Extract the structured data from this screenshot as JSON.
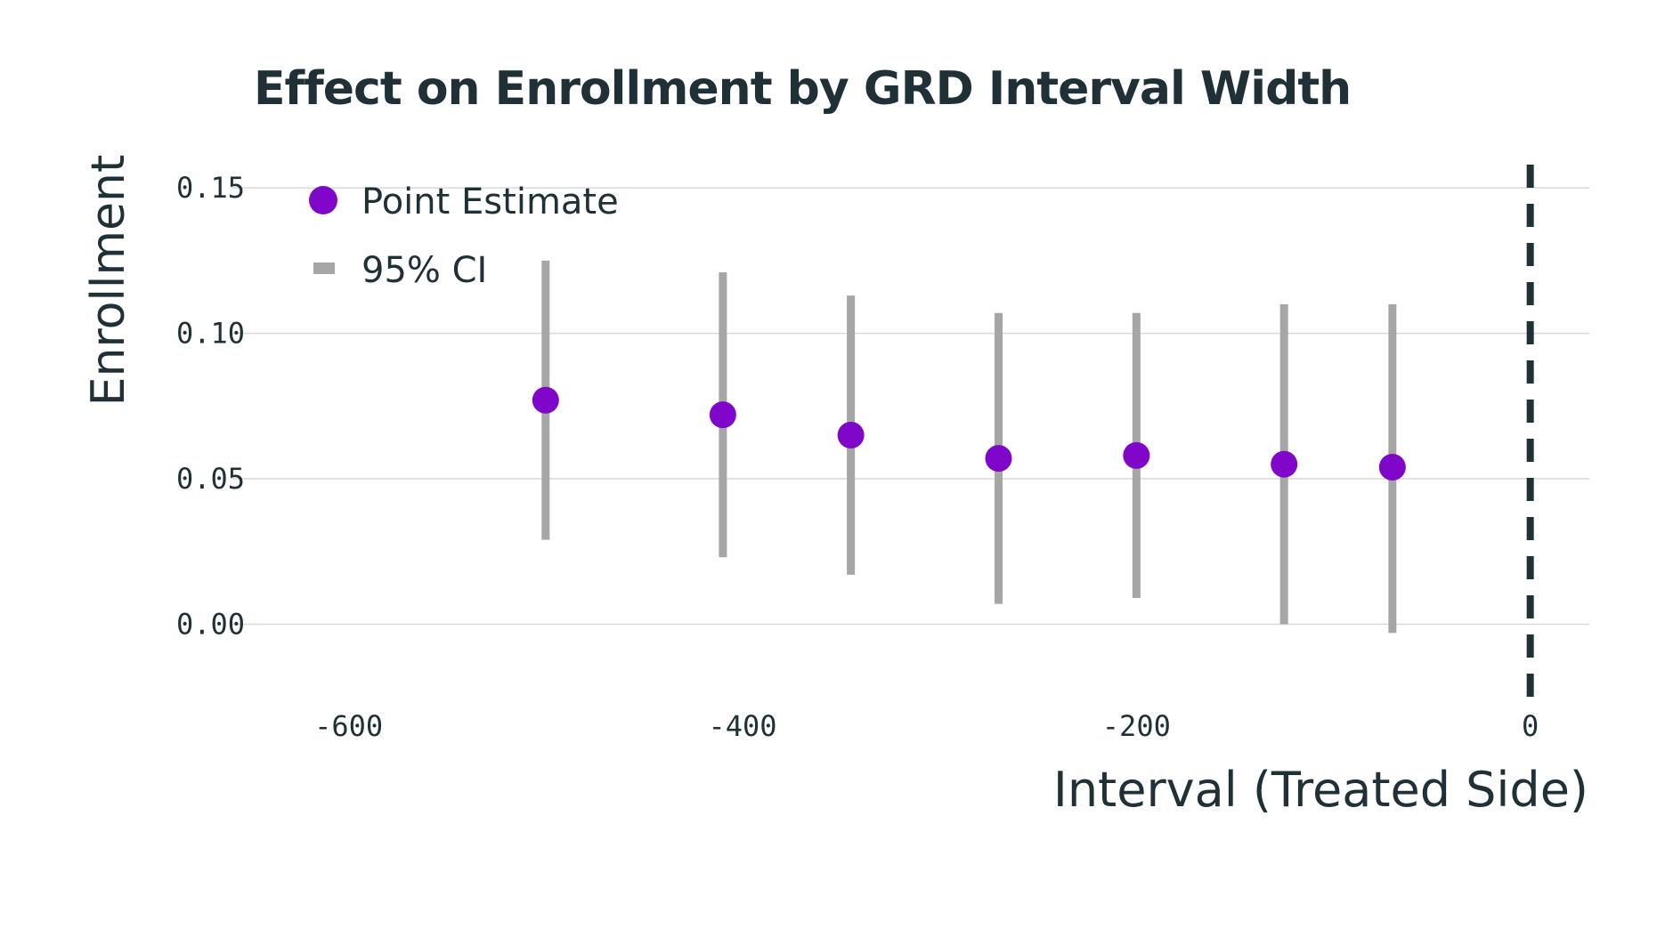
{
  "chart_data": {
    "type": "scatter",
    "title": "Effect on Enrollment by GRD Interval Width",
    "xlabel": "Interval (Treated Side)",
    "ylabel": "Enrollment",
    "xlim": [
      -655,
      30
    ],
    "ylim": [
      -0.028,
      0.158
    ],
    "x_ticks": [
      -600,
      -400,
      -200,
      0
    ],
    "x_tick_labels": [
      "-600",
      "-400",
      "-200",
      "0"
    ],
    "y_ticks": [
      0.0,
      0.05,
      0.1,
      0.15
    ],
    "y_tick_labels": [
      "0.00",
      "0.05",
      "0.10",
      "0.15"
    ],
    "grid": "horizontal",
    "legend": {
      "placement": "top-left",
      "entries": [
        {
          "label": "Point Estimate",
          "marker": "circle"
        },
        {
          "label": "95% CI",
          "marker": "bar"
        }
      ]
    },
    "reference_line": {
      "x": 0,
      "style": "dashed",
      "color": "#1f3037"
    },
    "points": [
      {
        "x": -500,
        "y": 0.077,
        "ci_low": 0.029,
        "ci_high": 0.125
      },
      {
        "x": -410,
        "y": 0.072,
        "ci_low": 0.023,
        "ci_high": 0.121
      },
      {
        "x": -345,
        "y": 0.065,
        "ci_low": 0.017,
        "ci_high": 0.113
      },
      {
        "x": -270,
        "y": 0.057,
        "ci_low": 0.007,
        "ci_high": 0.107
      },
      {
        "x": -200,
        "y": 0.058,
        "ci_low": 0.009,
        "ci_high": 0.107
      },
      {
        "x": -125,
        "y": 0.055,
        "ci_low": 0.0,
        "ci_high": 0.11
      },
      {
        "x": -70,
        "y": 0.054,
        "ci_low": -0.003,
        "ci_high": 0.11
      }
    ],
    "colors": {
      "point": "#8007c9",
      "ci": "#a6a6a6",
      "grid": "#d9d9d9",
      "text": "#1f3037"
    }
  }
}
